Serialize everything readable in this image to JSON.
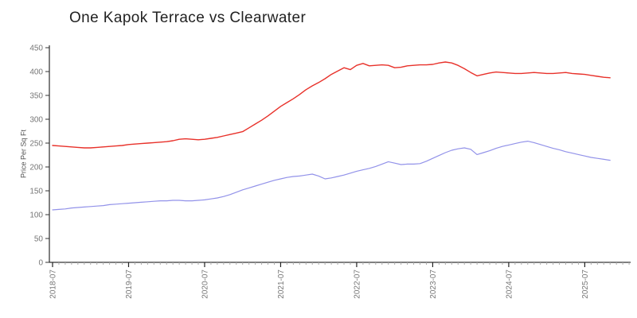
{
  "page": {
    "background": "#ffffff"
  },
  "chart_data": {
    "type": "line",
    "title": "One Kapok Terrace vs Clearwater",
    "xlabel": "",
    "ylabel": "Price Per Sq Ft",
    "ylim": [
      0,
      450
    ],
    "yticks": [
      0,
      50,
      100,
      150,
      200,
      250,
      300,
      350,
      400,
      450
    ],
    "x_major_tick_labels": [
      "2018-07",
      "2019-07",
      "2020-07",
      "2021-07",
      "2022-07",
      "2023-07",
      "2024-07",
      "2025-07"
    ],
    "x_minor_tick_freq": "monthly",
    "x_tick_label_rotation": -90,
    "grid": false,
    "legend_position": "none",
    "axis_color": "#000000",
    "tick_label_color": "#777777",
    "x": [
      "2018-07",
      "2018-08",
      "2018-09",
      "2018-10",
      "2018-11",
      "2018-12",
      "2019-01",
      "2019-02",
      "2019-03",
      "2019-04",
      "2019-05",
      "2019-06",
      "2019-07",
      "2019-08",
      "2019-09",
      "2019-10",
      "2019-11",
      "2019-12",
      "2020-01",
      "2020-02",
      "2020-03",
      "2020-04",
      "2020-05",
      "2020-06",
      "2020-07",
      "2020-08",
      "2020-09",
      "2020-10",
      "2020-11",
      "2020-12",
      "2021-01",
      "2021-02",
      "2021-03",
      "2021-04",
      "2021-05",
      "2021-06",
      "2021-07",
      "2021-08",
      "2021-09",
      "2021-10",
      "2021-11",
      "2021-12",
      "2022-01",
      "2022-02",
      "2022-03",
      "2022-04",
      "2022-05",
      "2022-06",
      "2022-07",
      "2022-08",
      "2022-09",
      "2022-10",
      "2022-11",
      "2022-12",
      "2023-01",
      "2023-02",
      "2023-03",
      "2023-04",
      "2023-05",
      "2023-06",
      "2023-07",
      "2023-08",
      "2023-09",
      "2023-10",
      "2023-11",
      "2023-12",
      "2024-01",
      "2024-02",
      "2024-03",
      "2024-04",
      "2024-05",
      "2024-06",
      "2024-07",
      "2024-08",
      "2024-09",
      "2024-10",
      "2024-11",
      "2024-12",
      "2025-01",
      "2025-02",
      "2025-03",
      "2025-04",
      "2025-05",
      "2025-06",
      "2025-07",
      "2025-08",
      "2025-09",
      "2025-10",
      "2025-11"
    ],
    "series": [
      {
        "name": "One Kapok Terrace",
        "color": "#e8312a",
        "values": [
          245,
          244,
          243,
          242,
          241,
          240,
          240,
          241,
          242,
          243,
          244,
          245,
          247,
          248,
          249,
          250,
          251,
          252,
          253,
          255,
          258,
          259,
          258,
          257,
          258,
          260,
          262,
          265,
          268,
          271,
          274,
          282,
          290,
          298,
          307,
          317,
          327,
          335,
          343,
          352,
          362,
          370,
          377,
          385,
          394,
          401,
          408,
          404,
          413,
          417,
          412,
          413,
          414,
          413,
          408,
          409,
          412,
          413,
          414,
          414,
          415,
          418,
          420,
          418,
          413,
          406,
          398,
          391,
          394,
          397,
          399,
          398,
          397,
          396,
          396,
          397,
          398,
          397,
          396,
          396,
          397,
          398,
          396,
          395,
          394,
          392,
          390,
          388,
          387
        ]
      },
      {
        "name": "Clearwater",
        "color": "#9292e9",
        "values": [
          110,
          111,
          112,
          114,
          115,
          116,
          117,
          118,
          119,
          121,
          122,
          123,
          124,
          125,
          126,
          127,
          128,
          129,
          129,
          130,
          130,
          129,
          129,
          130,
          131,
          133,
          135,
          138,
          142,
          147,
          152,
          156,
          160,
          164,
          168,
          172,
          175,
          178,
          180,
          181,
          183,
          185,
          181,
          175,
          177,
          180,
          183,
          187,
          191,
          194,
          197,
          201,
          206,
          211,
          208,
          205,
          206,
          206,
          207,
          212,
          218,
          224,
          230,
          235,
          238,
          240,
          237,
          226,
          230,
          234,
          239,
          243,
          246,
          249,
          252,
          254,
          251,
          247,
          243,
          239,
          236,
          232,
          229,
          226,
          223,
          220,
          218,
          216,
          214
        ]
      }
    ]
  }
}
